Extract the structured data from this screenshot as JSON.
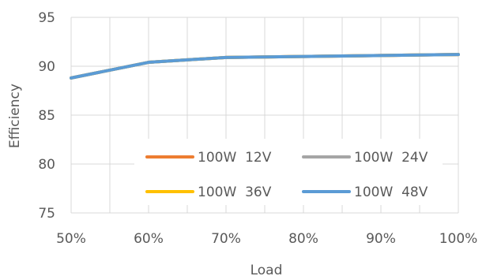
{
  "chart_data": {
    "type": "line",
    "title": "",
    "xlabel": "Load",
    "ylabel": "Efficiency",
    "x": [
      50,
      60,
      70,
      80,
      90,
      100
    ],
    "x_tick_labels": [
      "50%",
      "60%",
      "70%",
      "80%",
      "90%",
      "100%"
    ],
    "xlim": [
      50,
      100
    ],
    "ylim": [
      75,
      95
    ],
    "y_ticks": [
      75,
      80,
      85,
      90,
      95
    ],
    "y_tick_labels": [
      "75",
      "80",
      "85",
      "90",
      "95"
    ],
    "grid": true,
    "legend_position": "bottom-right inside plot",
    "series": [
      {
        "name": "100W  12V",
        "color": "#ed7d31",
        "values": [
          88.8,
          90.4,
          90.9,
          91.0,
          91.1,
          91.2
        ]
      },
      {
        "name": "100W  24V",
        "color": "#a5a5a5",
        "values": [
          88.8,
          90.4,
          90.9,
          91.0,
          91.1,
          91.2
        ]
      },
      {
        "name": "100W  36V",
        "color": "#ffc000",
        "values": [
          88.8,
          90.4,
          90.9,
          91.0,
          91.1,
          91.2
        ]
      },
      {
        "name": "100W  48V",
        "color": "#5b9bd5",
        "values": [
          88.8,
          90.4,
          90.9,
          91.0,
          91.1,
          91.2
        ]
      }
    ]
  }
}
